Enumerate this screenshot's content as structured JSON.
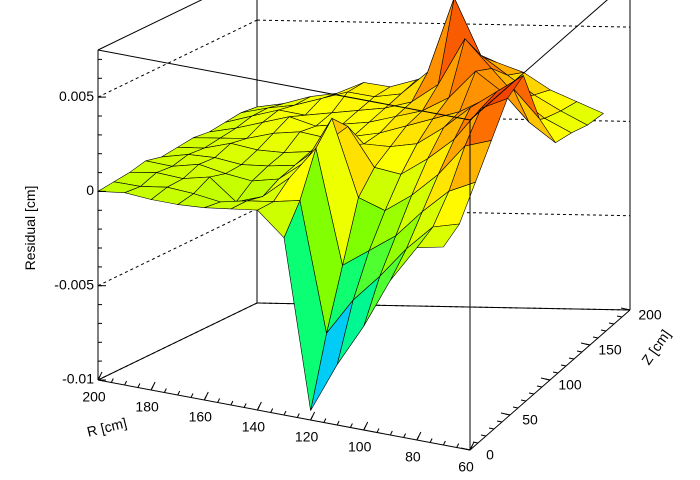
{
  "chart_data": {
    "type": "surface",
    "title": "",
    "xlabel": "R [cm]",
    "ylabel": "Z [cm]",
    "zlabel": "Residual [cm]",
    "xlim": [
      60,
      200
    ],
    "ylim": [
      0,
      200
    ],
    "zlim": [
      -0.01,
      0.0075
    ],
    "x_ticks": [
      60,
      80,
      100,
      120,
      140,
      160,
      180,
      200
    ],
    "y_ticks": [
      0,
      50,
      100,
      150,
      200
    ],
    "z_ticks": [
      -0.01,
      -0.005,
      0,
      0.005
    ],
    "x_tick_labels": [
      "60",
      "80",
      "100",
      "120",
      "140",
      "160",
      "180",
      "200"
    ],
    "y_tick_labels": [
      "0",
      "50",
      "100",
      "150",
      "200"
    ],
    "z_tick_labels": [
      "-0.01",
      "-0.005",
      "0",
      "0.005"
    ],
    "grid": true,
    "colormap": [
      "#0000ff",
      "#00c8ff",
      "#00ff80",
      "#80ff00",
      "#ffff00",
      "#ff8000",
      "#e60000"
    ],
    "r": [
      70,
      80,
      90,
      100,
      110,
      120,
      130,
      140,
      150,
      160,
      170,
      180,
      190,
      200
    ],
    "z": [
      0,
      20,
      40,
      60,
      80,
      100,
      120,
      140,
      160,
      180,
      200
    ],
    "residual": [
      [
        0.0005,
        0.0002,
        -0.0018,
        -0.0045,
        -0.0068,
        -0.0095,
        -0.0006,
        0.0006,
        0.0004,
        0.0002,
        0.0001,
        0.0001,
        0.0002,
        0.0
      ],
      [
        0.001,
        0.0006,
        -0.0008,
        -0.0025,
        -0.004,
        -0.006,
        0.0008,
        0.0005,
        0.0003,
        0.0,
        0.0002,
        0.0003,
        0.0001,
        0.0001
      ],
      [
        0.0025,
        0.0018,
        0.0005,
        -0.001,
        -0.002,
        -0.003,
        0.003,
        0.0012,
        0.0,
        -0.0005,
        0.0006,
        0.0003,
        0.0004,
        0.0002
      ],
      [
        0.004,
        0.0035,
        0.0018,
        0.0005,
        -0.0005,
        0.0,
        0.004,
        0.0015,
        0.0004,
        0.0001,
        0.0003,
        0.0006,
        0.0003,
        0.0004
      ],
      [
        0.0055,
        0.0048,
        0.003,
        0.0018,
        0.0008,
        0.001,
        0.003,
        0.0018,
        0.0006,
        0.0004,
        0.0003,
        0.0005,
        0.0005,
        0.0002
      ],
      [
        0.006,
        0.005,
        0.004,
        0.0028,
        0.0018,
        0.0015,
        0.0015,
        0.0012,
        0.0008,
        0.0006,
        0.0006,
        0.0008,
        0.0004,
        0.0003
      ],
      [
        0.003,
        0.0045,
        0.0038,
        0.003,
        0.0025,
        0.002,
        0.0015,
        0.0012,
        0.001,
        0.0012,
        0.001,
        0.0006,
        0.0005,
        0.0004
      ],
      [
        0.001,
        0.002,
        0.0035,
        0.0045,
        0.003,
        0.0022,
        0.0018,
        0.0014,
        0.0012,
        0.001,
        0.0014,
        0.001,
        0.0006,
        0.0003
      ],
      [
        0.0008,
        0.0015,
        0.0025,
        0.004,
        0.0055,
        0.003,
        0.002,
        0.0016,
        0.0014,
        0.0012,
        0.001,
        0.0012,
        0.0008,
        0.0004
      ],
      [
        0.0005,
        0.0012,
        0.002,
        0.003,
        0.004,
        0.007,
        0.003,
        0.0018,
        0.0016,
        0.0018,
        0.0014,
        0.001,
        0.0008,
        0.0005
      ],
      [
        0.0004,
        0.001,
        0.0016,
        0.0025,
        0.003,
        0.0035,
        0.0025,
        0.002,
        0.0016,
        0.0018,
        0.0012,
        0.001,
        0.0006,
        0.0004
      ]
    ]
  }
}
